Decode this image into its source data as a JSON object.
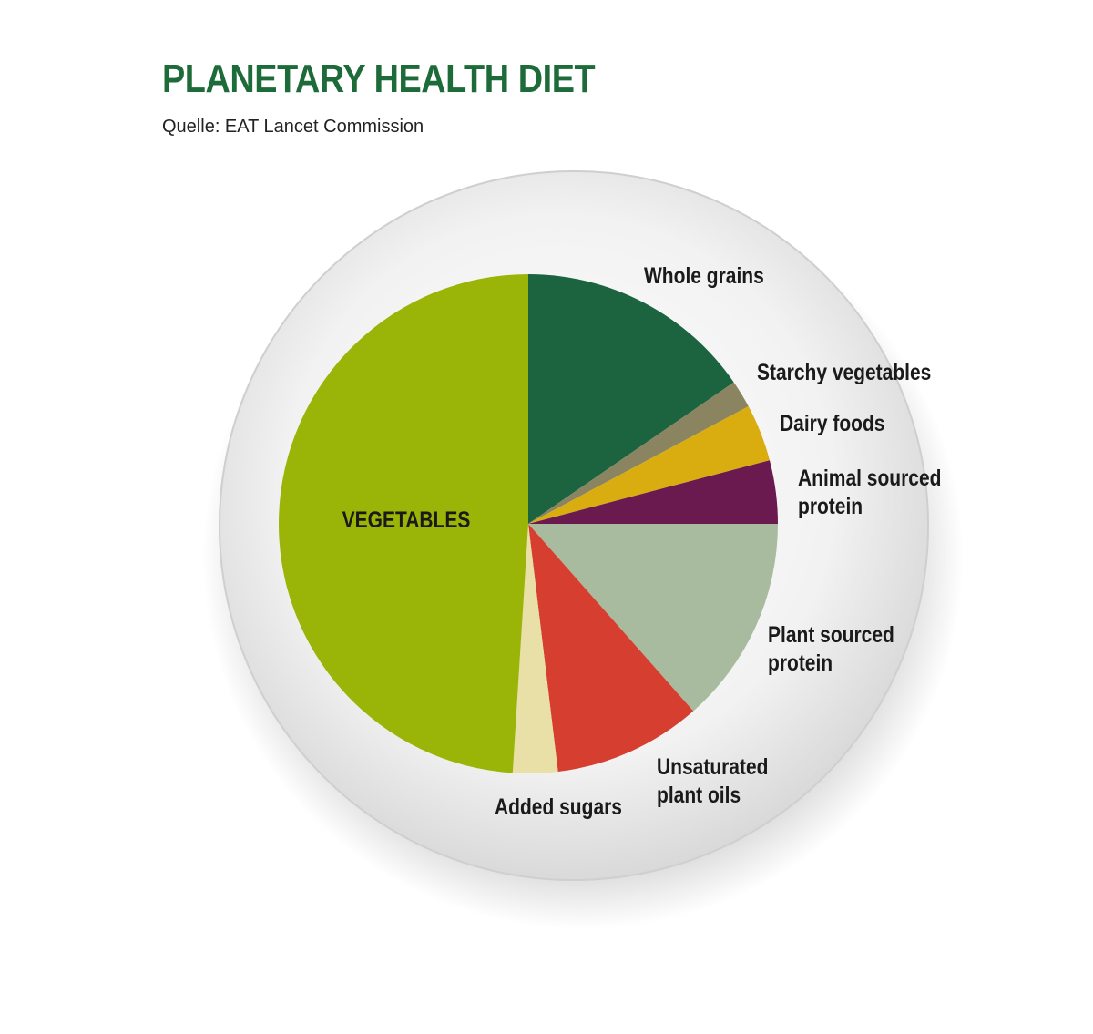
{
  "title": "PLANETARY HEALTH DIET",
  "subtitle": "Quelle: EAT Lancet Commission",
  "chart_data": {
    "type": "pie",
    "title": "PLANETARY HEALTH DIET",
    "start": "12 o'clock, clockwise",
    "slices": [
      {
        "label": "Whole grains",
        "value": 15.4,
        "color": "#1c6440"
      },
      {
        "label": "Starchy vegetables",
        "value": 1.8,
        "color": "#8a8460"
      },
      {
        "label": "Dairy foods",
        "value": 3.7,
        "color": "#d9ad10"
      },
      {
        "label": "Animal sourced protein",
        "label_lines": [
          "Animal sourced",
          "protein"
        ],
        "value": 4.1,
        "color": "#6b1a4f"
      },
      {
        "label": "Plant sourced protein",
        "label_lines": [
          "Plant sourced",
          "protein"
        ],
        "value": 13.5,
        "color": "#a8bb9e"
      },
      {
        "label": "Unsaturated plant oils",
        "label_lines": [
          "Unsaturated",
          "plant oils"
        ],
        "value": 9.6,
        "color": "#d63e2f"
      },
      {
        "label": "Added sugars",
        "value": 2.9,
        "color": "#e8e0a6"
      },
      {
        "label": "VEGETABLES",
        "value": 49.0,
        "color": "#9bb408"
      }
    ]
  }
}
